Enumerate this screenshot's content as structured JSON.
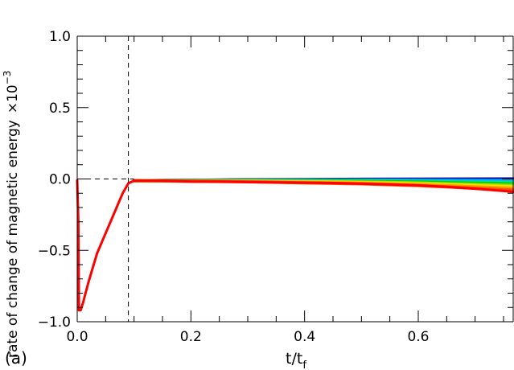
{
  "panel_label": "(a)",
  "colors": {
    "axis": "#000000",
    "background": "#ffffff"
  },
  "chart_data": {
    "type": "line",
    "xlabel": "t/t",
    "xlabel_subscript": "f",
    "ylabel": "rate of change of magnetic energy",
    "ylabel_scale": "×10",
    "ylabel_scale_exponent": "−3",
    "xlim": [
      0.0,
      0.767
    ],
    "ylim": [
      -1.0,
      1.0
    ],
    "x_ticks": [
      0.0,
      0.2,
      0.4,
      0.6
    ],
    "x_tick_labels": [
      "0.0",
      "0.2",
      "0.4",
      "0.6"
    ],
    "y_ticks": [
      -1.0,
      -0.5,
      0.0,
      0.5,
      1.0
    ],
    "y_tick_labels": [
      "−1.0",
      "−0.5",
      "0.0",
      "0.5",
      "1.0"
    ],
    "reference_lines": [
      {
        "orientation": "horizontal",
        "y": 0.0,
        "x_range": [
          0.0,
          0.1
        ],
        "style": "dashed"
      },
      {
        "orientation": "vertical",
        "x": 0.09,
        "style": "dashed"
      }
    ],
    "series": [
      {
        "color": "#000000",
        "points": [
          [
            0.1,
            -0.012
          ],
          [
            0.3,
            -0.006
          ],
          [
            0.5,
            -0.002
          ],
          [
            0.767,
            0.0
          ]
        ]
      },
      {
        "color": "#1a00cc",
        "points": [
          [
            0.1,
            -0.012
          ],
          [
            0.3,
            -0.007
          ],
          [
            0.5,
            -0.004
          ],
          [
            0.767,
            -0.003
          ]
        ]
      },
      {
        "color": "#0050ff",
        "points": [
          [
            0.1,
            -0.012
          ],
          [
            0.3,
            -0.008
          ],
          [
            0.5,
            -0.006
          ],
          [
            0.767,
            -0.008
          ]
        ]
      },
      {
        "color": "#00b4ff",
        "points": [
          [
            0.1,
            -0.012
          ],
          [
            0.3,
            -0.009
          ],
          [
            0.5,
            -0.009
          ],
          [
            0.767,
            -0.015
          ]
        ]
      },
      {
        "color": "#00e0a0",
        "points": [
          [
            0.1,
            -0.012
          ],
          [
            0.3,
            -0.011
          ],
          [
            0.5,
            -0.013
          ],
          [
            0.767,
            -0.025
          ]
        ]
      },
      {
        "color": "#00d000",
        "points": [
          [
            0.1,
            -0.012
          ],
          [
            0.3,
            -0.012
          ],
          [
            0.5,
            -0.017
          ],
          [
            0.6,
            -0.022
          ],
          [
            0.767,
            -0.035
          ]
        ]
      },
      {
        "color": "#9adf00",
        "points": [
          [
            0.1,
            -0.012
          ],
          [
            0.3,
            -0.014
          ],
          [
            0.5,
            -0.021
          ],
          [
            0.6,
            -0.028
          ],
          [
            0.767,
            -0.045
          ]
        ]
      },
      {
        "color": "#f0e000",
        "points": [
          [
            0.1,
            -0.012
          ],
          [
            0.3,
            -0.016
          ],
          [
            0.5,
            -0.025
          ],
          [
            0.6,
            -0.034
          ],
          [
            0.767,
            -0.055
          ]
        ]
      },
      {
        "color": "#ffa000",
        "points": [
          [
            0.1,
            -0.012
          ],
          [
            0.3,
            -0.018
          ],
          [
            0.5,
            -0.03
          ],
          [
            0.6,
            -0.04
          ],
          [
            0.767,
            -0.065
          ]
        ]
      },
      {
        "color": "#ff5000",
        "points": [
          [
            0.1,
            -0.012
          ],
          [
            0.3,
            -0.02
          ],
          [
            0.5,
            -0.034
          ],
          [
            0.6,
            -0.046
          ],
          [
            0.767,
            -0.078
          ]
        ]
      },
      {
        "color": "#ff0000",
        "points": [
          [
            0.0,
            -0.01
          ],
          [
            0.002,
            -0.3
          ],
          [
            0.003,
            -0.92
          ],
          [
            0.006,
            -0.92
          ],
          [
            0.01,
            -0.87
          ],
          [
            0.02,
            -0.72
          ],
          [
            0.035,
            -0.52
          ],
          [
            0.05,
            -0.38
          ],
          [
            0.065,
            -0.24
          ],
          [
            0.08,
            -0.1
          ],
          [
            0.09,
            -0.03
          ],
          [
            0.1,
            -0.012
          ],
          [
            0.15,
            -0.012
          ],
          [
            0.2,
            -0.018
          ],
          [
            0.25,
            -0.018
          ],
          [
            0.3,
            -0.022
          ],
          [
            0.35,
            -0.024
          ],
          [
            0.4,
            -0.026
          ],
          [
            0.45,
            -0.028
          ],
          [
            0.5,
            -0.033
          ],
          [
            0.55,
            -0.038
          ],
          [
            0.6,
            -0.045
          ],
          [
            0.65,
            -0.055
          ],
          [
            0.7,
            -0.068
          ],
          [
            0.767,
            -0.09
          ]
        ]
      }
    ]
  }
}
